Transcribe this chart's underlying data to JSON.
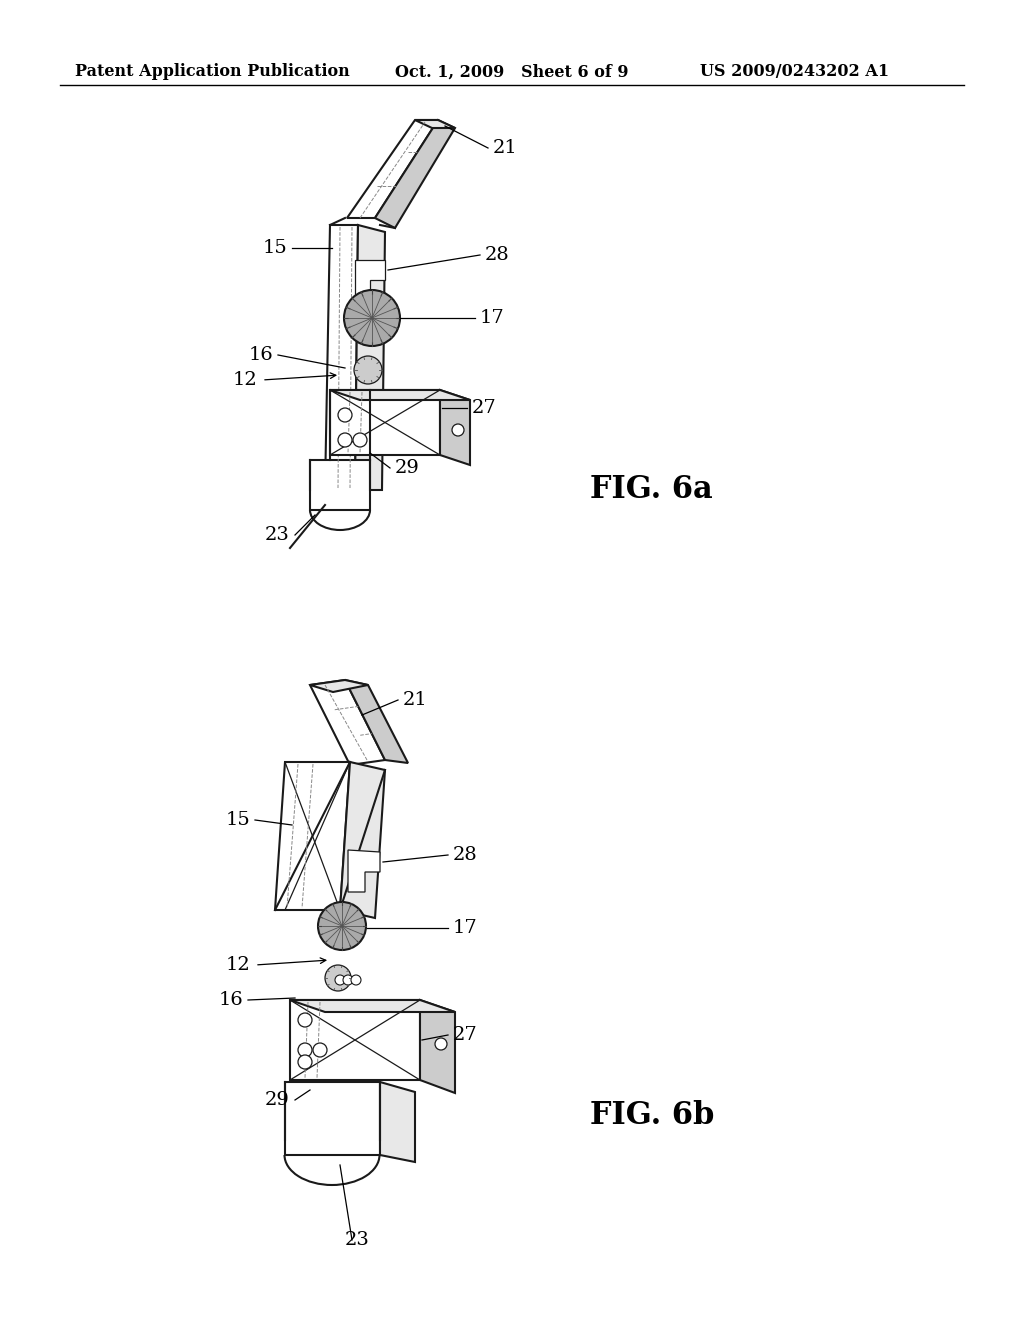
{
  "background_color": "#ffffff",
  "header_left": "Patent Application Publication",
  "header_center": "Oct. 1, 2009   Sheet 6 of 9",
  "header_right": "US 2009/0243202 A1",
  "fig_label_6a": "FIG. 6a",
  "fig_label_6b": "FIG. 6b",
  "fig_label_fontsize": 22,
  "annotation_fontsize": 14,
  "header_fontsize": 11.5,
  "line_color": "#1a1a1a",
  "fill_white": "#ffffff",
  "fill_light": "#e8e8e8",
  "fill_mid": "#cccccc",
  "fill_dark": "#aaaaaa"
}
